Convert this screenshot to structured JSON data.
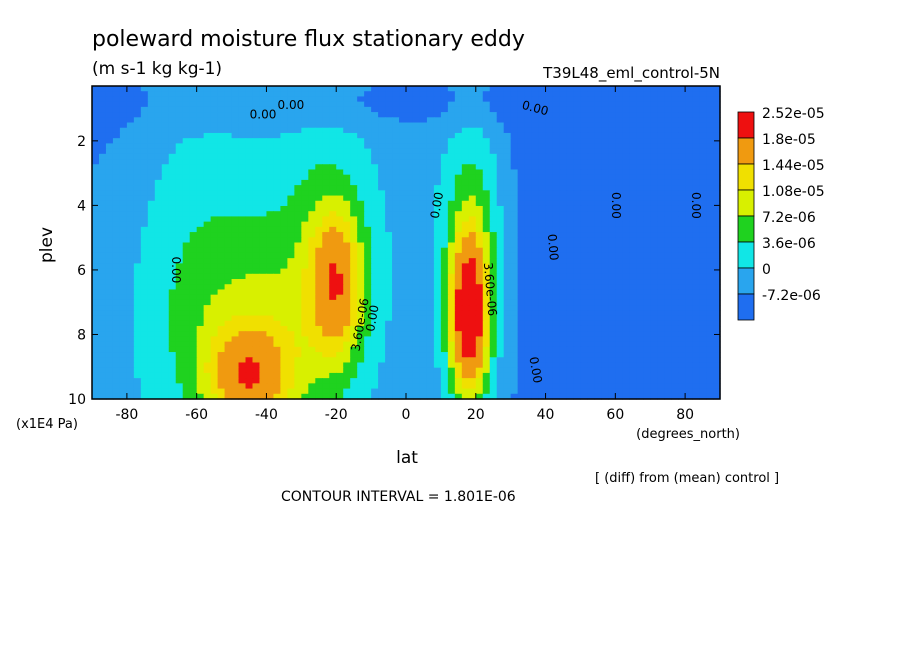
{
  "chart_data": {
    "type": "heatmap",
    "title": "poleward moisture flux stationary eddy",
    "units": "(m s-1 kg kg-1)",
    "run_label": "T39L48_eml_control-5N",
    "xlabel": "lat",
    "x_units": "(degrees_north)",
    "ylabel": "plev",
    "y_units": "(x1E4 Pa)",
    "diff_note": "[ (diff) from (mean) control ]",
    "contour_interval_text": "CONTOUR INTERVAL = 1.801E-06",
    "xlim": [
      -90,
      90
    ],
    "ylim": [
      10,
      0.3
    ],
    "x_ticks": [
      {
        "v": -80,
        "label": "-80"
      },
      {
        "v": -60,
        "label": "-60"
      },
      {
        "v": -40,
        "label": "-40"
      },
      {
        "v": -20,
        "label": "-20"
      },
      {
        "v": 0,
        "label": "0"
      },
      {
        "v": 20,
        "label": "20"
      },
      {
        "v": 40,
        "label": "40"
      },
      {
        "v": 60,
        "label": "60"
      },
      {
        "v": 80,
        "label": "80"
      }
    ],
    "y_ticks": [
      {
        "v": 2,
        "label": "2"
      },
      {
        "v": 4,
        "label": "4"
      },
      {
        "v": 6,
        "label": "6"
      },
      {
        "v": 8,
        "label": "8"
      },
      {
        "v": 10,
        "label": "10"
      }
    ],
    "levels": [
      -7.2e-06,
      0,
      3.6e-06,
      7.2e-06,
      1.08e-05,
      1.44e-05,
      1.8e-05,
      2.52e-05
    ],
    "colorbar": [
      {
        "label": "2.52e-05",
        "color": "#ee1010"
      },
      {
        "label": "1.8e-05",
        "color": "#f09a10"
      },
      {
        "label": "1.44e-05",
        "color": "#f0e000"
      },
      {
        "label": "1.08e-05",
        "color": "#d8f000"
      },
      {
        "label": "7.2e-06",
        "color": "#1fd21f"
      },
      {
        "label": "3.6e-06",
        "color": "#11e6e6"
      },
      {
        "label": "0",
        "color": "#29a5ee"
      },
      {
        "label": "-7.2e-06",
        "color": "#1f6ef0"
      }
    ],
    "features": [
      {
        "lat": 18,
        "plev": 7.4,
        "peak": 2.6e-05,
        "slat": 3.5,
        "splev": 1.6
      },
      {
        "lat": 19,
        "plev": 6.0,
        "peak": 1e-05,
        "slat": 6,
        "splev": 3.2
      },
      {
        "lat": -45,
        "plev": 9.3,
        "peak": 1.6e-05,
        "slat": 8,
        "splev": 1.0
      },
      {
        "lat": -42,
        "plev": 8.2,
        "peak": 7e-06,
        "slat": 16,
        "splev": 2.4
      },
      {
        "lat": -20,
        "plev": 6.4,
        "peak": 1.55e-05,
        "slat": 5,
        "splev": 1.5
      },
      {
        "lat": -22,
        "plev": 5.8,
        "peak": 6e-06,
        "slat": 9,
        "splev": 3.0
      },
      {
        "lat": -60,
        "plev": 6.5,
        "peak": 4.5e-06,
        "slat": 20,
        "splev": 4.0
      },
      {
        "lat": -25,
        "plev": 5.0,
        "peak": 2.5e-06,
        "slat": 45,
        "splev": 6.0
      },
      {
        "lat": 65,
        "plev": 4.0,
        "peak": -3.5e-06,
        "slat": 20,
        "splev": 6.0
      },
      {
        "lat": 40,
        "plev": 6.0,
        "peak": -2.5e-06,
        "slat": 8,
        "splev": 5.0
      },
      {
        "lat": -85,
        "plev": 3.0,
        "peak": -2e-06,
        "slat": 10,
        "splev": 4.0
      },
      {
        "lat": 0,
        "plev": 0.8,
        "peak": -3e-06,
        "slat": 60,
        "splev": 0.6
      }
    ],
    "contour_labels": [
      {
        "text": "0.00",
        "lat": -33,
        "plev": 0.9,
        "rot": 0
      },
      {
        "text": "0.00",
        "lat": -41,
        "plev": 1.2,
        "rot": 0
      },
      {
        "text": "0.00",
        "lat": 37,
        "plev": 1.0,
        "rot": 15
      },
      {
        "text": "0.00",
        "lat": -66,
        "plev": 6.0,
        "rot": 90
      },
      {
        "text": "0.00",
        "lat": 9,
        "plev": 4.0,
        "rot": -80
      },
      {
        "text": "0.00",
        "lat": 42,
        "plev": 5.3,
        "rot": 85
      },
      {
        "text": "0.00",
        "lat": 60,
        "plev": 4.0,
        "rot": 90
      },
      {
        "text": "0.00",
        "lat": 83,
        "plev": 4.0,
        "rot": 90
      },
      {
        "text": "0.00",
        "lat": -9.5,
        "plev": 7.5,
        "rot": -80
      },
      {
        "text": "0.00",
        "lat": 37,
        "plev": 9.1,
        "rot": 80
      },
      {
        "text": "3.60e-06",
        "lat": -13,
        "plev": 7.7,
        "rot": -80
      },
      {
        "text": "3.60e-06",
        "lat": 24,
        "plev": 6.6,
        "rot": 85
      }
    ]
  }
}
